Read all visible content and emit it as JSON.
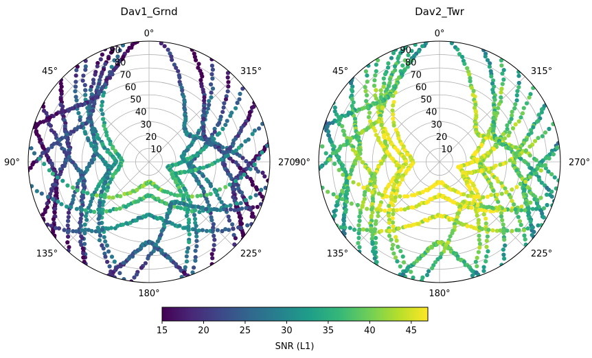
{
  "chart_data": [
    {
      "type": "scatter",
      "subtype": "polar-skyplot",
      "title": "Dav1_Grnd",
      "theta_zero": "top",
      "theta_direction": "counterclockwise",
      "theta_tick_labels": [
        "0°",
        "45°",
        "90°",
        "135°",
        "180°",
        "225°",
        "270°",
        "315°"
      ],
      "r_tick_labels": [
        "10",
        "20",
        "30",
        "40",
        "50",
        "60",
        "70",
        "80",
        "90"
      ],
      "r_range": [
        0,
        90
      ],
      "grid": true,
      "color_value": "SNR (L1)",
      "snr_range_dominant": [
        22,
        38
      ],
      "tracks": [
        {
          "az_start": 355,
          "az_end": 260,
          "r_peak": 35,
          "snr": 28
        },
        {
          "az_start": 330,
          "az_end": 225,
          "r_peak": 25,
          "snr": 30
        },
        {
          "az_start": 320,
          "az_end": 210,
          "r_peak": 30,
          "snr": 26
        },
        {
          "az_start": 300,
          "az_end": 240,
          "r_peak": 55,
          "snr": 24
        },
        {
          "az_start": 310,
          "az_end": 200,
          "r_peak": 15,
          "snr": 34
        },
        {
          "az_start": 340,
          "az_end": 250,
          "r_peak": 45,
          "snr": 22
        },
        {
          "az_start": 290,
          "az_end": 195,
          "r_peak": 20,
          "snr": 36
        },
        {
          "az_start": 280,
          "az_end": 230,
          "r_peak": 65,
          "snr": 20
        },
        {
          "az_start": 30,
          "az_end": 150,
          "r_peak": 25,
          "snr": 32
        },
        {
          "az_start": 20,
          "az_end": 140,
          "r_peak": 40,
          "snr": 27
        },
        {
          "az_start": 45,
          "az_end": 120,
          "r_peak": 60,
          "snr": 22
        },
        {
          "az_start": 10,
          "az_end": 170,
          "r_peak": 20,
          "snr": 35
        },
        {
          "az_start": 60,
          "az_end": 150,
          "r_peak": 50,
          "snr": 25
        },
        {
          "az_start": 35,
          "az_end": 165,
          "r_peak": 30,
          "snr": 30
        },
        {
          "az_start": 70,
          "az_end": 130,
          "r_peak": 70,
          "snr": 19
        },
        {
          "az_start": 15,
          "az_end": 95,
          "r_peak": 55,
          "snr": 24
        },
        {
          "az_start": 100,
          "az_end": 260,
          "r_peak": 25,
          "snr": 37
        },
        {
          "az_start": 120,
          "az_end": 240,
          "r_peak": 40,
          "snr": 31
        },
        {
          "az_start": 160,
          "az_end": 200,
          "r_peak": 60,
          "snr": 26
        },
        {
          "az_start": 80,
          "az_end": 280,
          "r_peak": 15,
          "snr": 40
        },
        {
          "az_start": 250,
          "az_end": 170,
          "r_peak": 35,
          "snr": 29
        },
        {
          "az_start": 5,
          "az_end": 75,
          "r_peak": 62,
          "snr": 21
        }
      ]
    },
    {
      "type": "scatter",
      "subtype": "polar-skyplot",
      "title": "Dav2_Twr",
      "theta_zero": "top",
      "theta_direction": "counterclockwise",
      "theta_tick_labels": [
        "0°",
        "45°",
        "90°",
        "135°",
        "180°",
        "225°",
        "270°",
        "315°"
      ],
      "r_tick_labels": [
        "10",
        "20",
        "30",
        "40",
        "50",
        "60",
        "70",
        "80",
        "90"
      ],
      "r_range": [
        0,
        90
      ],
      "grid": true,
      "color_value": "SNR (L1)",
      "snr_range_dominant": [
        38,
        47
      ],
      "tracks": [
        {
          "az_start": 355,
          "az_end": 260,
          "r_peak": 35,
          "snr": 44
        },
        {
          "az_start": 330,
          "az_end": 225,
          "r_peak": 25,
          "snr": 45
        },
        {
          "az_start": 320,
          "az_end": 210,
          "r_peak": 30,
          "snr": 42
        },
        {
          "az_start": 300,
          "az_end": 240,
          "r_peak": 55,
          "snr": 40
        },
        {
          "az_start": 310,
          "az_end": 200,
          "r_peak": 15,
          "snr": 46
        },
        {
          "az_start": 340,
          "az_end": 250,
          "r_peak": 45,
          "snr": 38
        },
        {
          "az_start": 290,
          "az_end": 195,
          "r_peak": 20,
          "snr": 46
        },
        {
          "az_start": 280,
          "az_end": 230,
          "r_peak": 65,
          "snr": 37
        },
        {
          "az_start": 30,
          "az_end": 150,
          "r_peak": 25,
          "snr": 46
        },
        {
          "az_start": 20,
          "az_end": 140,
          "r_peak": 40,
          "snr": 44
        },
        {
          "az_start": 45,
          "az_end": 120,
          "r_peak": 60,
          "snr": 40
        },
        {
          "az_start": 10,
          "az_end": 170,
          "r_peak": 20,
          "snr": 47
        },
        {
          "az_start": 60,
          "az_end": 150,
          "r_peak": 50,
          "snr": 42
        },
        {
          "az_start": 35,
          "az_end": 165,
          "r_peak": 30,
          "snr": 45
        },
        {
          "az_start": 70,
          "az_end": 130,
          "r_peak": 70,
          "snr": 36
        },
        {
          "az_start": 15,
          "az_end": 95,
          "r_peak": 55,
          "snr": 41
        },
        {
          "az_start": 100,
          "az_end": 260,
          "r_peak": 25,
          "snr": 47
        },
        {
          "az_start": 120,
          "az_end": 240,
          "r_peak": 40,
          "snr": 45
        },
        {
          "az_start": 160,
          "az_end": 200,
          "r_peak": 60,
          "snr": 40
        },
        {
          "az_start": 80,
          "az_end": 280,
          "r_peak": 15,
          "snr": 47
        },
        {
          "az_start": 250,
          "az_end": 170,
          "r_peak": 35,
          "snr": 43
        },
        {
          "az_start": 5,
          "az_end": 75,
          "r_peak": 62,
          "snr": 38
        }
      ]
    }
  ],
  "colorbar": {
    "label": "SNR (L1)",
    "min": 15,
    "max": 47,
    "tick_labels": [
      "15",
      "20",
      "25",
      "30",
      "35",
      "40",
      "45"
    ],
    "colormap": "viridis",
    "stops": [
      "#440154",
      "#482878",
      "#3e4989",
      "#31688e",
      "#26828e",
      "#1f9e89",
      "#35b779",
      "#6ece58",
      "#b5de2b",
      "#fde725"
    ]
  }
}
